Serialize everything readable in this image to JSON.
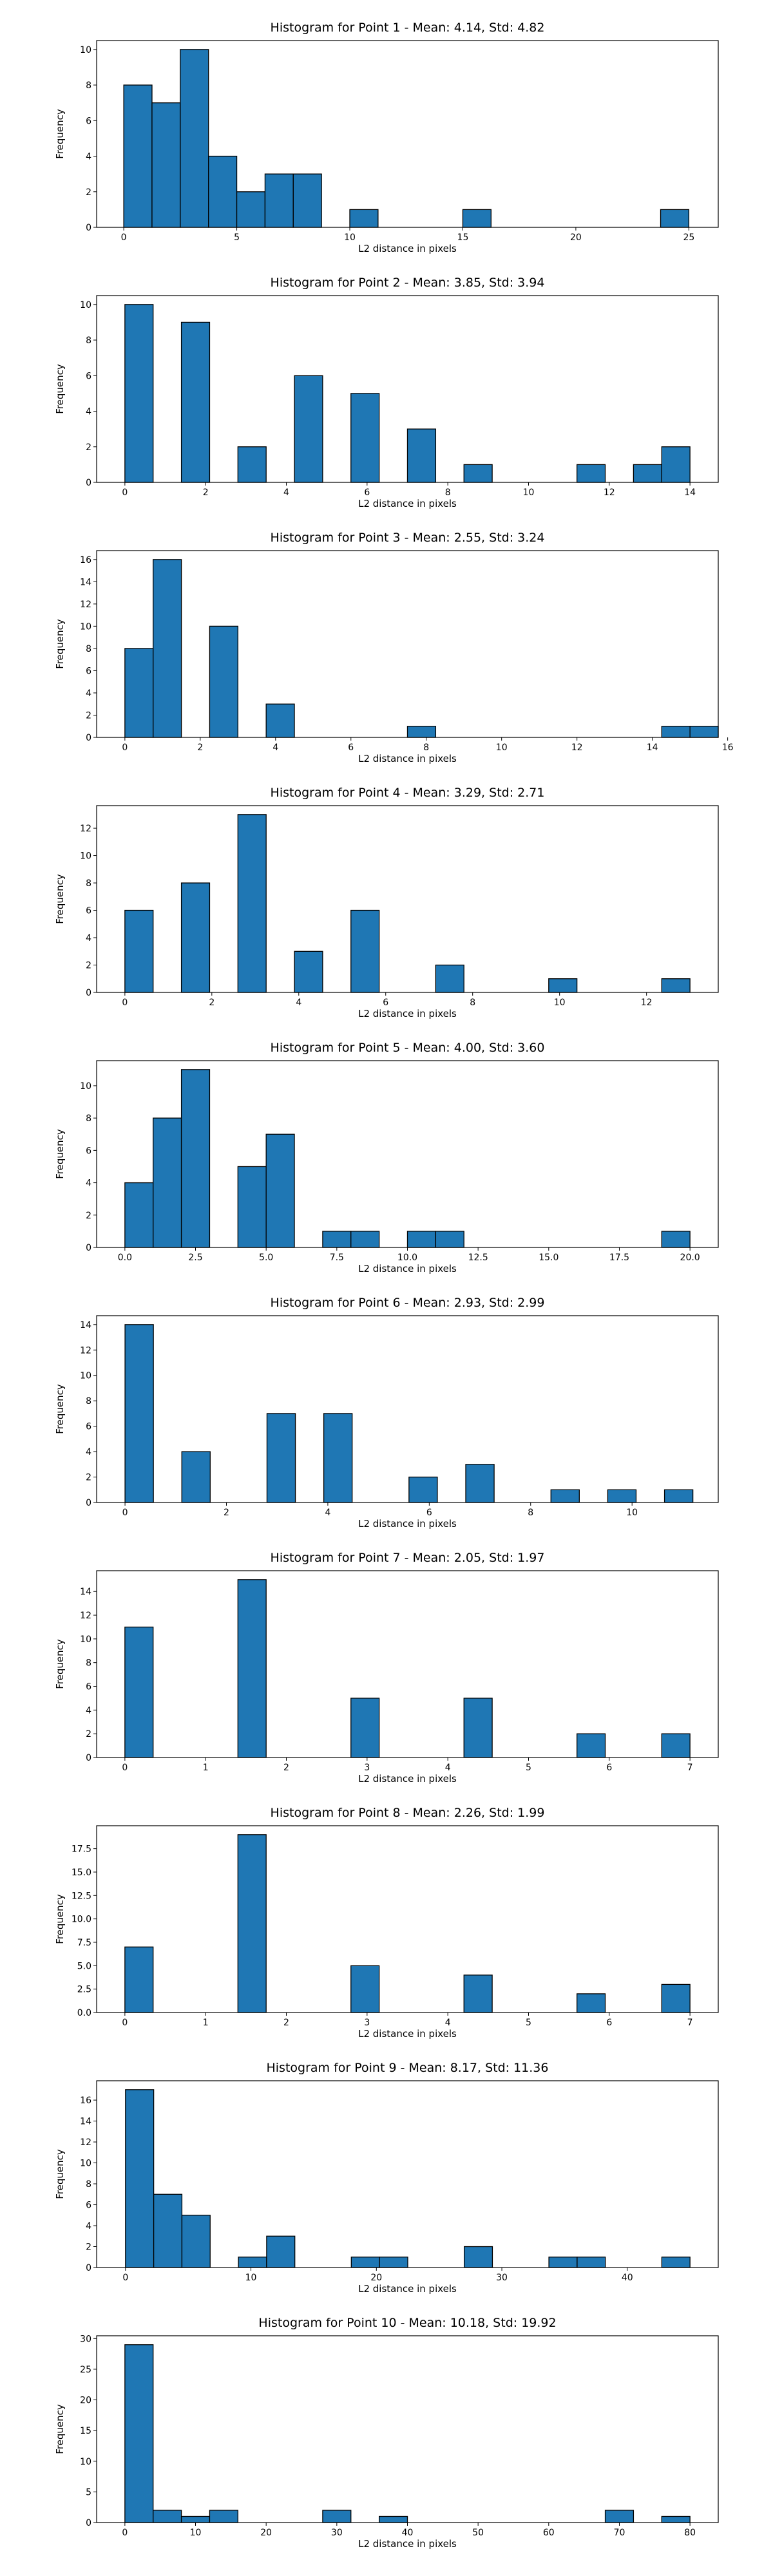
{
  "page": {
    "background": "#ffffff",
    "bar_color": "#1f77b4",
    "edge_color": "#000000"
  },
  "chart_data": [
    {
      "type": "bar",
      "title": "Histogram for Point 1 - Mean: 4.14, Std: 4.82",
      "xlabel": "L2 distance in pixels",
      "ylabel": "Frequency",
      "xlim": [
        -1.2,
        26.3
      ],
      "ylim": [
        0,
        10.5
      ],
      "xticks": [
        0,
        5,
        10,
        15,
        20,
        25
      ],
      "xtick_labels": [
        "0",
        "5",
        "10",
        "15",
        "20",
        "25"
      ],
      "yticks": [
        0,
        2,
        4,
        6,
        8,
        10
      ],
      "ytick_labels": [
        "0",
        "2",
        "4",
        "6",
        "8",
        "10"
      ],
      "bin_width": 1.25,
      "bins": [
        {
          "x": 0,
          "value": 8
        },
        {
          "x": 1.25,
          "value": 7
        },
        {
          "x": 2.5,
          "value": 10
        },
        {
          "x": 3.75,
          "value": 4
        },
        {
          "x": 5.0,
          "value": 2
        },
        {
          "x": 6.25,
          "value": 3
        },
        {
          "x": 7.5,
          "value": 3
        },
        {
          "x": 10.0,
          "value": 1
        },
        {
          "x": 15.0,
          "value": 1
        },
        {
          "x": 23.75,
          "value": 1
        }
      ]
    },
    {
      "type": "bar",
      "title": "Histogram for Point 2 - Mean: 3.85, Std: 3.94",
      "xlabel": "L2 distance in pixels",
      "ylabel": "Frequency",
      "xlim": [
        -0.7,
        14.7
      ],
      "ylim": [
        0,
        10.5
      ],
      "xticks": [
        0,
        2,
        4,
        6,
        8,
        10,
        12,
        14
      ],
      "xtick_labels": [
        "0",
        "2",
        "4",
        "6",
        "8",
        "10",
        "12",
        "14"
      ],
      "yticks": [
        0,
        2,
        4,
        6,
        8,
        10
      ],
      "ytick_labels": [
        "0",
        "2",
        "4",
        "6",
        "8",
        "10"
      ],
      "bin_width": 0.7,
      "bins": [
        {
          "x": 0,
          "value": 10
        },
        {
          "x": 1.4,
          "value": 9
        },
        {
          "x": 2.8,
          "value": 2
        },
        {
          "x": 4.2,
          "value": 6
        },
        {
          "x": 5.6,
          "value": 5
        },
        {
          "x": 7.0,
          "value": 3
        },
        {
          "x": 8.4,
          "value": 1
        },
        {
          "x": 11.2,
          "value": 1
        },
        {
          "x": 12.6,
          "value": 1
        },
        {
          "x": 13.3,
          "value": 2
        }
      ]
    },
    {
      "type": "bar",
      "title": "Histogram for Point 3 - Mean: 2.55, Std: 3.24",
      "xlabel": "L2 distance in pixels",
      "ylabel": "Frequency",
      "xlim": [
        -0.75,
        15.75
      ],
      "ylim": [
        0,
        16.8
      ],
      "xticks": [
        0,
        2,
        4,
        6,
        8,
        10,
        12,
        14,
        16
      ],
      "xtick_labels": [
        "0",
        "2",
        "4",
        "6",
        "8",
        "10",
        "12",
        "14",
        "16"
      ],
      "yticks": [
        0,
        2,
        4,
        6,
        8,
        10,
        12,
        14,
        16
      ],
      "ytick_labels": [
        "0",
        "2",
        "4",
        "6",
        "8",
        "10",
        "12",
        "14",
        "16"
      ],
      "bin_width": 0.75,
      "bins": [
        {
          "x": 0,
          "value": 8
        },
        {
          "x": 0.75,
          "value": 16
        },
        {
          "x": 2.25,
          "value": 10
        },
        {
          "x": 3.75,
          "value": 3
        },
        {
          "x": 7.5,
          "value": 1
        },
        {
          "x": 14.25,
          "value": 1
        },
        {
          "x": 15.0,
          "value": 1
        }
      ]
    },
    {
      "type": "bar",
      "title": "Histogram for Point 4 - Mean: 3.29, Std: 2.71",
      "xlabel": "L2 distance in pixels",
      "ylabel": "Frequency",
      "xlim": [
        -0.65,
        13.65
      ],
      "ylim": [
        0,
        13.65
      ],
      "xticks": [
        0,
        2,
        4,
        6,
        8,
        10,
        12
      ],
      "xtick_labels": [
        "0",
        "2",
        "4",
        "6",
        "8",
        "10",
        "12"
      ],
      "yticks": [
        0,
        2,
        4,
        6,
        8,
        10,
        12
      ],
      "ytick_labels": [
        "0",
        "2",
        "4",
        "6",
        "8",
        "10",
        "12"
      ],
      "bin_width": 0.65,
      "bins": [
        {
          "x": 0,
          "value": 6
        },
        {
          "x": 1.3,
          "value": 8
        },
        {
          "x": 2.6,
          "value": 13
        },
        {
          "x": 3.9,
          "value": 3
        },
        {
          "x": 5.2,
          "value": 6
        },
        {
          "x": 7.15,
          "value": 2
        },
        {
          "x": 9.75,
          "value": 1
        },
        {
          "x": 12.35,
          "value": 1
        }
      ]
    },
    {
      "type": "bar",
      "title": "Histogram for Point 5 - Mean: 4.00, Std: 3.60",
      "xlabel": "L2 distance in pixels",
      "ylabel": "Frequency",
      "xlim": [
        -1.0,
        21.0
      ],
      "ylim": [
        0,
        11.55
      ],
      "xticks": [
        0,
        2.5,
        5,
        7.5,
        10,
        12.5,
        15,
        17.5,
        20
      ],
      "xtick_labels": [
        "0.0",
        "2.5",
        "5.0",
        "7.5",
        "10.0",
        "12.5",
        "15.0",
        "17.5",
        "20.0"
      ],
      "yticks": [
        0,
        2,
        4,
        6,
        8,
        10
      ],
      "ytick_labels": [
        "0",
        "2",
        "4",
        "6",
        "8",
        "10"
      ],
      "bin_width": 1.0,
      "bins": [
        {
          "x": 0,
          "value": 4
        },
        {
          "x": 1,
          "value": 8
        },
        {
          "x": 2,
          "value": 11
        },
        {
          "x": 4,
          "value": 5
        },
        {
          "x": 5,
          "value": 7
        },
        {
          "x": 7,
          "value": 1
        },
        {
          "x": 8,
          "value": 1
        },
        {
          "x": 10,
          "value": 1
        },
        {
          "x": 11,
          "value": 1
        },
        {
          "x": 19,
          "value": 1
        }
      ]
    },
    {
      "type": "bar",
      "title": "Histogram for Point 6 - Mean: 2.93, Std: 2.99",
      "xlabel": "L2 distance in pixels",
      "ylabel": "Frequency",
      "xlim": [
        -0.56,
        11.7
      ],
      "ylim": [
        0,
        14.7
      ],
      "xticks": [
        0,
        2,
        4,
        6,
        8,
        10
      ],
      "xtick_labels": [
        "0",
        "2",
        "4",
        "6",
        "8",
        "10"
      ],
      "yticks": [
        0,
        2,
        4,
        6,
        8,
        10,
        12,
        14
      ],
      "ytick_labels": [
        "0",
        "2",
        "4",
        "6",
        "8",
        "10",
        "12",
        "14"
      ],
      "bin_width": 0.56,
      "bins": [
        {
          "x": 0,
          "value": 14
        },
        {
          "x": 1.12,
          "value": 4
        },
        {
          "x": 2.8,
          "value": 7
        },
        {
          "x": 3.92,
          "value": 7
        },
        {
          "x": 5.6,
          "value": 2
        },
        {
          "x": 6.72,
          "value": 3
        },
        {
          "x": 8.4,
          "value": 1
        },
        {
          "x": 9.52,
          "value": 1
        },
        {
          "x": 10.64,
          "value": 1
        }
      ]
    },
    {
      "type": "bar",
      "title": "Histogram for Point 7 - Mean: 2.05, Std: 1.97",
      "xlabel": "L2 distance in pixels",
      "ylabel": "Frequency",
      "xlim": [
        -0.35,
        7.35
      ],
      "ylim": [
        0,
        15.75
      ],
      "xticks": [
        0,
        1,
        2,
        3,
        4,
        5,
        6,
        7
      ],
      "xtick_labels": [
        "0",
        "1",
        "2",
        "3",
        "4",
        "5",
        "6",
        "7"
      ],
      "yticks": [
        0,
        2,
        4,
        6,
        8,
        10,
        12,
        14
      ],
      "ytick_labels": [
        "0",
        "2",
        "4",
        "6",
        "8",
        "10",
        "12",
        "14"
      ],
      "bin_width": 0.35,
      "bins": [
        {
          "x": 0,
          "value": 11
        },
        {
          "x": 1.4,
          "value": 15
        },
        {
          "x": 2.8,
          "value": 5
        },
        {
          "x": 4.2,
          "value": 5
        },
        {
          "x": 5.6,
          "value": 2
        },
        {
          "x": 6.65,
          "value": 2
        }
      ]
    },
    {
      "type": "bar",
      "title": "Histogram for Point 8 - Mean: 2.26, Std: 1.99",
      "xlabel": "L2 distance in pixels",
      "ylabel": "Frequency",
      "xlim": [
        -0.35,
        7.35
      ],
      "ylim": [
        0,
        19.95
      ],
      "xticks": [
        0,
        1,
        2,
        3,
        4,
        5,
        6,
        7
      ],
      "xtick_labels": [
        "0",
        "1",
        "2",
        "3",
        "4",
        "5",
        "6",
        "7"
      ],
      "yticks": [
        0,
        2.5,
        5,
        7.5,
        10,
        12.5,
        15,
        17.5
      ],
      "ytick_labels": [
        "0.0",
        "2.5",
        "5.0",
        "7.5",
        "10.0",
        "12.5",
        "15.0",
        "17.5"
      ],
      "bin_width": 0.35,
      "bins": [
        {
          "x": 0,
          "value": 7
        },
        {
          "x": 1.4,
          "value": 19
        },
        {
          "x": 2.8,
          "value": 5
        },
        {
          "x": 4.2,
          "value": 4
        },
        {
          "x": 5.6,
          "value": 2
        },
        {
          "x": 6.65,
          "value": 3
        }
      ]
    },
    {
      "type": "bar",
      "title": "Histogram for Point 9 - Mean: 8.17, Std: 11.36",
      "xlabel": "L2 distance in pixels",
      "ylabel": "Frequency",
      "xlim": [
        -2.3,
        47.25
      ],
      "ylim": [
        0,
        17.85
      ],
      "xticks": [
        0,
        10,
        20,
        30,
        40
      ],
      "xtick_labels": [
        "0",
        "10",
        "20",
        "30",
        "40"
      ],
      "yticks": [
        0,
        2,
        4,
        6,
        8,
        10,
        12,
        14,
        16
      ],
      "ytick_labels": [
        "0",
        "2",
        "4",
        "6",
        "8",
        "10",
        "12",
        "14",
        "16"
      ],
      "bin_width": 2.25,
      "bins": [
        {
          "x": 0,
          "value": 17
        },
        {
          "x": 2.25,
          "value": 7
        },
        {
          "x": 4.5,
          "value": 5
        },
        {
          "x": 9.0,
          "value": 1
        },
        {
          "x": 11.25,
          "value": 3
        },
        {
          "x": 18.0,
          "value": 1
        },
        {
          "x": 20.25,
          "value": 1
        },
        {
          "x": 27.0,
          "value": 2
        },
        {
          "x": 33.75,
          "value": 1
        },
        {
          "x": 36.0,
          "value": 1
        },
        {
          "x": 42.75,
          "value": 1
        }
      ]
    },
    {
      "type": "bar",
      "title": "Histogram for Point 10 - Mean: 10.18, Std: 19.92",
      "xlabel": "L2 distance in pixels",
      "ylabel": "Frequency",
      "xlim": [
        -4.0,
        84.0
      ],
      "ylim": [
        0,
        30.45
      ],
      "xticks": [
        0,
        10,
        20,
        30,
        40,
        50,
        60,
        70,
        80
      ],
      "xtick_labels": [
        "0",
        "10",
        "20",
        "30",
        "40",
        "50",
        "60",
        "70",
        "80"
      ],
      "yticks": [
        0,
        5,
        10,
        15,
        20,
        25,
        30
      ],
      "ytick_labels": [
        "0",
        "5",
        "10",
        "15",
        "20",
        "25",
        "30"
      ],
      "bin_width": 4.0,
      "bins": [
        {
          "x": 0,
          "value": 29
        },
        {
          "x": 4,
          "value": 2
        },
        {
          "x": 8,
          "value": 1
        },
        {
          "x": 12,
          "value": 2
        },
        {
          "x": 28,
          "value": 2
        },
        {
          "x": 36,
          "value": 1
        },
        {
          "x": 68,
          "value": 2
        },
        {
          "x": 76,
          "value": 1
        }
      ]
    }
  ]
}
